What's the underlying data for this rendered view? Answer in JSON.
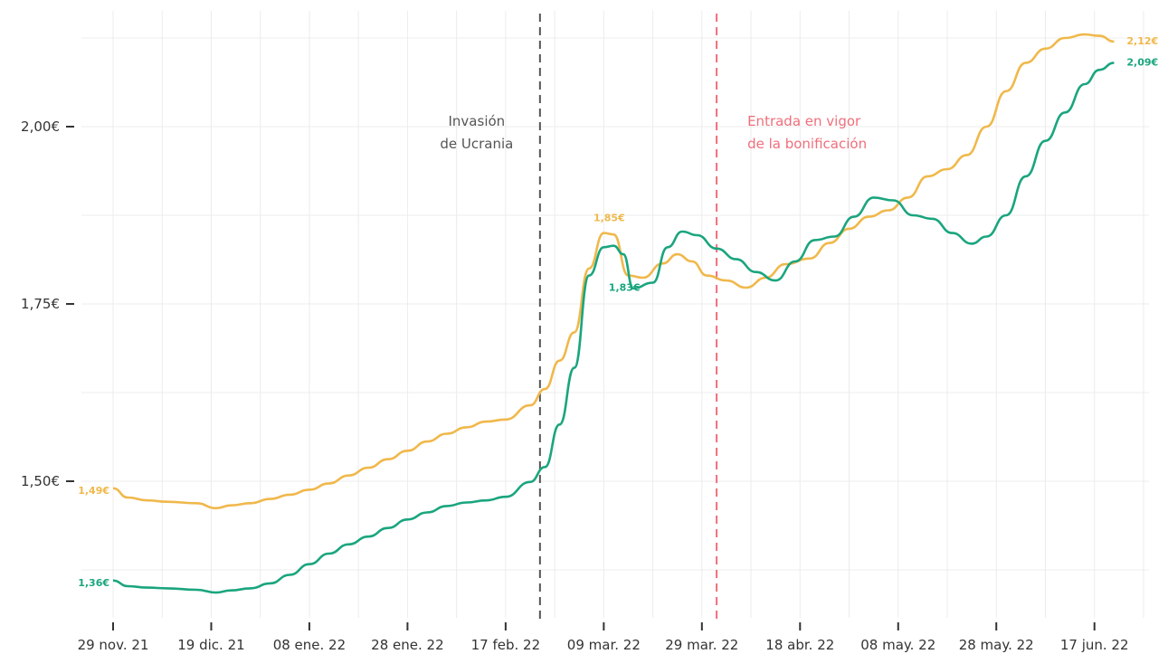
{
  "chart_data": {
    "type": "line",
    "x_start": "2021-11-29",
    "x_ticks": [
      "29 nov. 21",
      "19 dic. 21",
      "08 ene. 22",
      "28 ene. 22",
      "17 feb. 22",
      "09 mar. 22",
      "29 mar. 22",
      "18 abr. 22",
      "08 may. 22",
      "28 may. 22",
      "17 jun. 22"
    ],
    "y_ticks": [
      "1,50€",
      "1,75€",
      "2,00€"
    ],
    "y_tick_values": [
      1.5,
      1.75,
      2.0
    ],
    "ylim": [
      1.3,
      2.2
    ],
    "grid": true,
    "series": [
      {
        "color": "#f0b84b",
        "x": [
          "2021-11-29",
          "2021-12-02",
          "2021-12-06",
          "2021-12-10",
          "2021-12-16",
          "2021-12-20",
          "2021-12-23",
          "2021-12-27",
          "2021-12-31",
          "2022-01-04",
          "2022-01-08",
          "2022-01-12",
          "2022-01-16",
          "2022-01-20",
          "2022-01-24",
          "2022-01-28",
          "2022-02-01",
          "2022-02-05",
          "2022-02-09",
          "2022-02-13",
          "2022-02-17",
          "2022-02-22",
          "2022-02-25",
          "2022-02-28",
          "2022-03-03",
          "2022-03-06",
          "2022-03-09",
          "2022-03-11",
          "2022-03-14",
          "2022-03-17",
          "2022-03-21",
          "2022-03-24",
          "2022-03-27",
          "2022-03-30",
          "2022-04-03",
          "2022-04-07",
          "2022-04-11",
          "2022-04-15",
          "2022-04-20",
          "2022-04-24",
          "2022-04-28",
          "2022-05-02",
          "2022-05-06",
          "2022-05-10",
          "2022-05-14",
          "2022-05-18",
          "2022-05-22",
          "2022-05-26",
          "2022-05-30",
          "2022-06-03",
          "2022-06-07",
          "2022-06-11",
          "2022-06-15",
          "2022-06-18",
          "2022-06-21"
        ],
        "values": [
          1.49,
          1.477,
          1.473,
          1.471,
          1.469,
          1.462,
          1.466,
          1.469,
          1.475,
          1.481,
          1.488,
          1.497,
          1.508,
          1.519,
          1.531,
          1.543,
          1.556,
          1.567,
          1.576,
          1.584,
          1.587,
          1.607,
          1.63,
          1.67,
          1.71,
          1.8,
          1.85,
          1.848,
          1.79,
          1.787,
          1.807,
          1.82,
          1.81,
          1.79,
          1.783,
          1.773,
          1.787,
          1.806,
          1.814,
          1.836,
          1.856,
          1.873,
          1.882,
          1.9,
          1.93,
          1.94,
          1.96,
          2.0,
          2.05,
          2.09,
          2.11,
          2.125,
          2.13,
          2.128,
          2.12
        ],
        "end_label": "2,12€",
        "start_label": "1,49€",
        "peak_label": "1,85€"
      },
      {
        "color": "#1aa57e",
        "x": [
          "2021-11-29",
          "2021-12-02",
          "2021-12-06",
          "2021-12-10",
          "2021-12-16",
          "2021-12-20",
          "2021-12-23",
          "2021-12-27",
          "2021-12-31",
          "2022-01-04",
          "2022-01-08",
          "2022-01-12",
          "2022-01-16",
          "2022-01-20",
          "2022-01-24",
          "2022-01-28",
          "2022-02-01",
          "2022-02-05",
          "2022-02-09",
          "2022-02-13",
          "2022-02-17",
          "2022-02-22",
          "2022-02-25",
          "2022-02-28",
          "2022-03-03",
          "2022-03-06",
          "2022-03-09",
          "2022-03-11",
          "2022-03-13",
          "2022-03-15",
          "2022-03-19",
          "2022-03-22",
          "2022-03-25",
          "2022-03-28",
          "2022-04-01",
          "2022-04-05",
          "2022-04-09",
          "2022-04-13",
          "2022-04-17",
          "2022-04-21",
          "2022-04-25",
          "2022-04-29",
          "2022-05-03",
          "2022-05-07",
          "2022-05-11",
          "2022-05-15",
          "2022-05-19",
          "2022-05-23",
          "2022-05-26",
          "2022-05-30",
          "2022-06-03",
          "2022-06-07",
          "2022-06-11",
          "2022-06-15",
          "2022-06-18",
          "2022-06-21"
        ],
        "values": [
          1.36,
          1.352,
          1.35,
          1.349,
          1.347,
          1.343,
          1.346,
          1.349,
          1.356,
          1.368,
          1.383,
          1.398,
          1.411,
          1.422,
          1.434,
          1.446,
          1.456,
          1.465,
          1.47,
          1.473,
          1.478,
          1.499,
          1.52,
          1.58,
          1.66,
          1.79,
          1.83,
          1.832,
          1.82,
          1.772,
          1.78,
          1.83,
          1.852,
          1.847,
          1.828,
          1.813,
          1.795,
          1.783,
          1.81,
          1.84,
          1.845,
          1.873,
          1.9,
          1.896,
          1.875,
          1.87,
          1.85,
          1.835,
          1.845,
          1.875,
          1.93,
          1.98,
          2.02,
          2.06,
          2.08,
          2.09
        ],
        "end_label": "2,09€",
        "start_label": "1,36€",
        "peak_label": "1,83€"
      }
    ],
    "annotations": [
      {
        "date": "2022-02-24",
        "color": "#555555",
        "lines": [
          "Invasión",
          "de Ucrania"
        ]
      },
      {
        "date": "2022-04-01",
        "color": "#ef6f7b",
        "lines": [
          "Entrada en vigor",
          "de la bonificación"
        ]
      }
    ]
  }
}
